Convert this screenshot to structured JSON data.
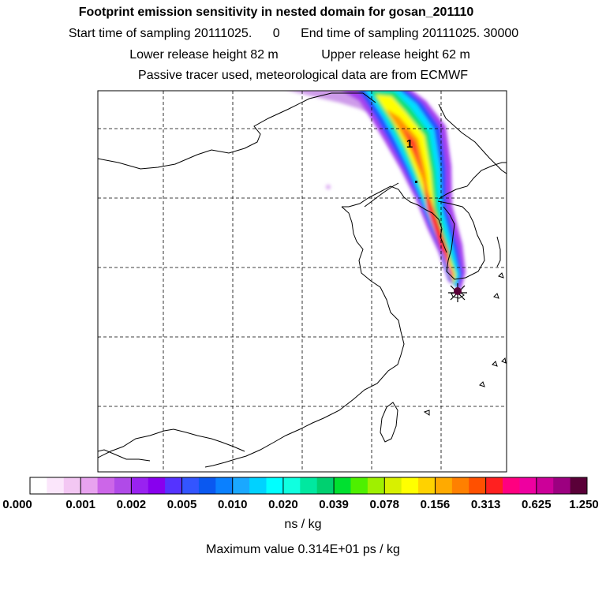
{
  "titles": {
    "main": "Footprint emission sensitivity in nested domain for gosan_201110",
    "start_label": "Start time of sampling 20111025.",
    "start_value": "0",
    "end_label": "End time of sampling 20111025. 30000",
    "lower_height": "Lower release height   82 m",
    "upper_height": "Upper release height   62 m",
    "tracer_note": "Passive tracer used, meteorological data are from ECMWF"
  },
  "map": {
    "release_label": "1",
    "release_marker": "asterisk-icon"
  },
  "colorbar": {
    "tick_labels": [
      "0.000",
      "0.001",
      "0.002",
      "0.005",
      "0.010",
      "0.020",
      "0.039",
      "0.078",
      "0.156",
      "0.313",
      "0.625",
      "1.250"
    ],
    "colors": [
      "#ffffff",
      "#fbe6fb",
      "#f3c7f3",
      "#e8a3ef",
      "#cc66e8",
      "#b04ae8",
      "#9922f0",
      "#8800ee",
      "#5533ff",
      "#3355ff",
      "#0a58f0",
      "#0a80ff",
      "#1aa8ff",
      "#00d2ff",
      "#00ffff",
      "#10ffe0",
      "#00e8a0",
      "#00d070",
      "#00e030",
      "#4ef000",
      "#9ff000",
      "#d8f000",
      "#ffff00",
      "#ffd200",
      "#ffaa00",
      "#ff8000",
      "#ff5000",
      "#ff2020",
      "#ff0080",
      "#ee00a0",
      "#cc0099",
      "#9c0080",
      "#5a0038"
    ],
    "units": "ns / kg"
  },
  "footer": {
    "max_value": "Maximum value  0.314E+01 ps / kg"
  }
}
